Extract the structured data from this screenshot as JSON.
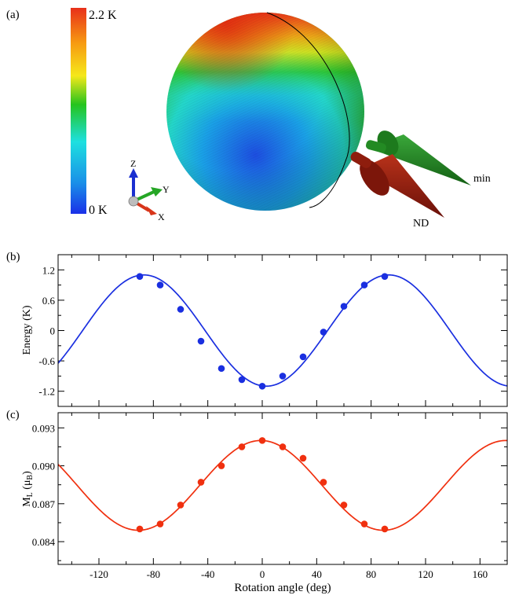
{
  "panel_a": {
    "label": "(a)",
    "colorbar": {
      "max_label": "2.2 K",
      "min_label": "0 K",
      "colors": [
        "#e8301a",
        "#f79a12",
        "#f5e81a",
        "#25c41d",
        "#1de0e0",
        "#1a8fe8",
        "#1a30e8"
      ]
    },
    "axes_triad": {
      "z": "Z",
      "y": "Y",
      "x": "X"
    },
    "arrows": {
      "min": "min",
      "nd": "ND",
      "min_color": "#1f7a1f",
      "nd_color": "#8b1a0e"
    }
  },
  "panel_b": {
    "label": "(b)"
  },
  "panel_c": {
    "label": "(c)"
  },
  "chart_data": [
    {
      "type": "line",
      "ylabel": "Energy (K)",
      "xlabel": "",
      "xlim": [
        -150,
        180
      ],
      "ylim": [
        -1.5,
        1.5
      ],
      "xticks": [
        -120,
        -80,
        -40,
        0,
        40,
        80,
        120,
        160
      ],
      "yticks": [
        -1.2,
        -0.6,
        0,
        0.6,
        1.2
      ],
      "ytick_labels": [
        "-1.2",
        "-0.6",
        "0",
        "0.6",
        "1.2"
      ],
      "color": "#1a2fe0",
      "points": {
        "x": [
          -90,
          -75,
          -60,
          -45,
          -30,
          -15,
          0,
          15,
          30,
          45,
          60,
          75,
          90
        ],
        "y": [
          1.07,
          0.9,
          0.42,
          -0.21,
          -0.75,
          -0.97,
          -1.1,
          -0.9,
          -0.52,
          -0.03,
          0.48,
          0.9,
          1.07
        ]
      },
      "fit_curve": {
        "function": "-A*cos(2*(x - phase))",
        "amplitude": 1.1,
        "phase_deg": 3
      }
    },
    {
      "type": "line",
      "ylabel": "M_L (μ_B)",
      "xlabel": "Rotation angle (deg)",
      "xlim": [
        -150,
        180
      ],
      "ylim": [
        0.0822,
        0.0942
      ],
      "xticks": [
        -120,
        -80,
        -40,
        0,
        40,
        80,
        120,
        160
      ],
      "xtick_labels": [
        "-120",
        "-80",
        "-40",
        "0",
        "40",
        "80",
        "120",
        "160"
      ],
      "yticks": [
        0.084,
        0.087,
        0.09,
        0.093
      ],
      "ytick_labels": [
        "0.084",
        "0.087",
        "0.090",
        "0.093"
      ],
      "color": "#f0300f",
      "points": {
        "x": [
          -90,
          -75,
          -60,
          -45,
          -30,
          -15,
          0,
          15,
          30,
          45,
          60,
          75,
          90
        ],
        "y": [
          0.085,
          0.0854,
          0.0869,
          0.0887,
          0.09,
          0.0915,
          0.092,
          0.0915,
          0.0906,
          0.0887,
          0.0869,
          0.0854,
          0.085
        ]
      },
      "fit_curve": {
        "function": "offset + A*cos(2*(x - phase))",
        "offset": 0.08845,
        "amplitude": 0.00355,
        "phase_deg": -1
      }
    }
  ]
}
